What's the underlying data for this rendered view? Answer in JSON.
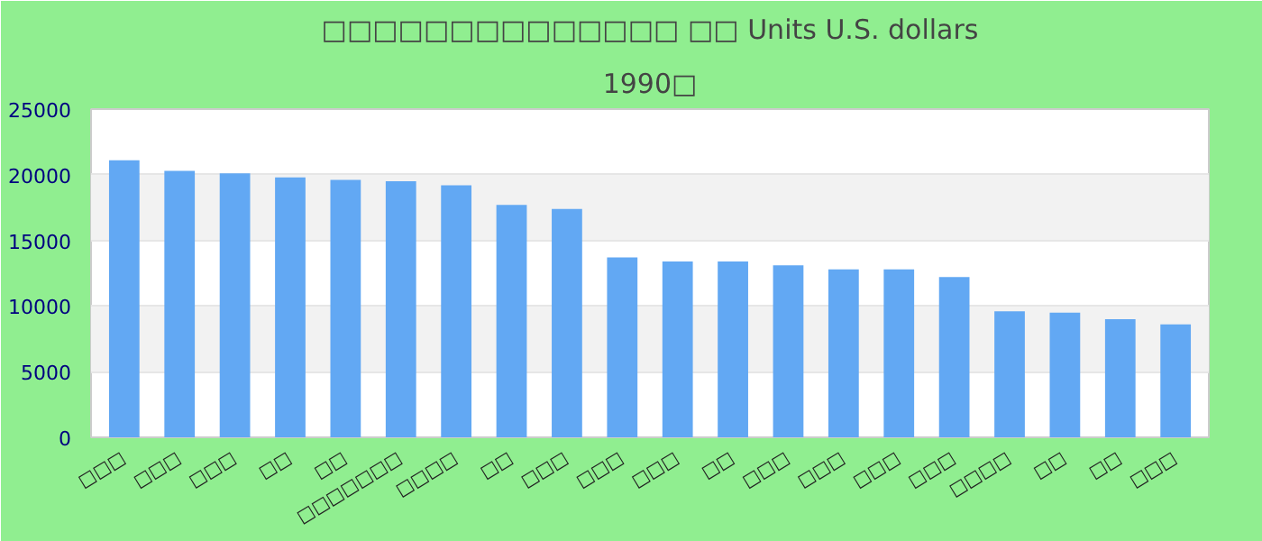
{
  "chart_data": {
    "type": "bar",
    "title": "□□□□□□□□□□□□□□ □□ Units U.S. dollars",
    "subtitle": "1990□",
    "categories": [
      "□□□",
      "□□□",
      "□□□",
      "□□",
      "□□",
      "□□□□□□□",
      "□□□□",
      "□□",
      "□□□",
      "□□□",
      "□□□",
      "□□",
      "□□□",
      "□□□",
      "□□□",
      "□□□",
      "□□□□",
      "□□",
      "□□",
      "□□□"
    ],
    "values": [
      21100,
      20300,
      20100,
      19800,
      19600,
      19500,
      19200,
      17700,
      17400,
      13700,
      13400,
      13400,
      13100,
      12800,
      12800,
      12200,
      9600,
      9500,
      9000,
      8600
    ],
    "color": "#62a8f3",
    "ylim": [
      0,
      25000
    ],
    "yticks": [
      0,
      5000,
      10000,
      15000,
      20000,
      25000
    ],
    "grid": "y"
  }
}
